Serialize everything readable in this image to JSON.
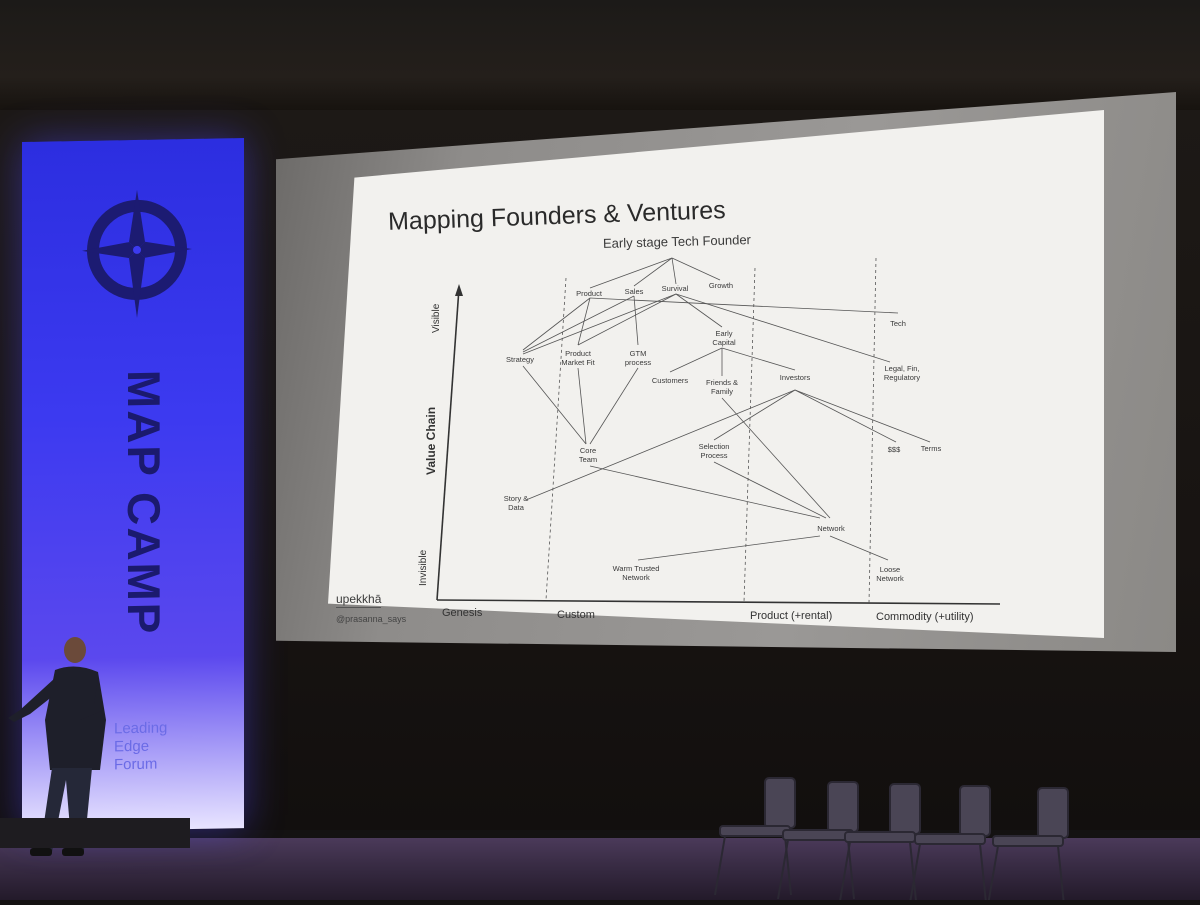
{
  "banner": {
    "title": "MAP CAMP",
    "org": [
      "Leading",
      "Edge",
      "Forum"
    ]
  },
  "slide": {
    "title": "Mapping Founders & Ventures",
    "subtitle": "Early stage Tech Founder",
    "y_axis": {
      "label": "Value Chain",
      "top": "Visible",
      "bottom": "Invisible"
    },
    "x_axis": [
      "Genesis",
      "Custom",
      "Product (+rental)",
      "Commodity (+utility)"
    ],
    "nodes": {
      "product": "Product",
      "sales": "Sales",
      "survival": "Survival",
      "growth": "Growth",
      "tech": "Tech",
      "strategy": "Strategy",
      "pmf_1": "Product",
      "pmf_2": "Market Fit",
      "gtm_1": "GTM",
      "gtm_2": "process",
      "early_capital_1": "Early",
      "early_capital_2": "Capital",
      "customers": "Customers",
      "friends_1": "Friends &",
      "friends_2": "Family",
      "investors": "Investors",
      "legal_1": "Legal, Fin,",
      "legal_2": "Regulatory",
      "core_team_1": "Core",
      "core_team_2": "Team",
      "selection_1": "Selection",
      "selection_2": "Process",
      "money": "$$$",
      "terms": "Terms",
      "story_1": "Story &",
      "story_2": "Data",
      "network": "Network",
      "warm_1": "Warm Trusted",
      "warm_2": "Network",
      "loose_1": "Loose",
      "loose_2": "Network"
    },
    "brand": "upekkhā",
    "handle": "@prasanna_says"
  },
  "colors": {
    "banner": "#3c3af0",
    "slide_bg": "#f2f1ee",
    "text": "#2a2a2a"
  }
}
